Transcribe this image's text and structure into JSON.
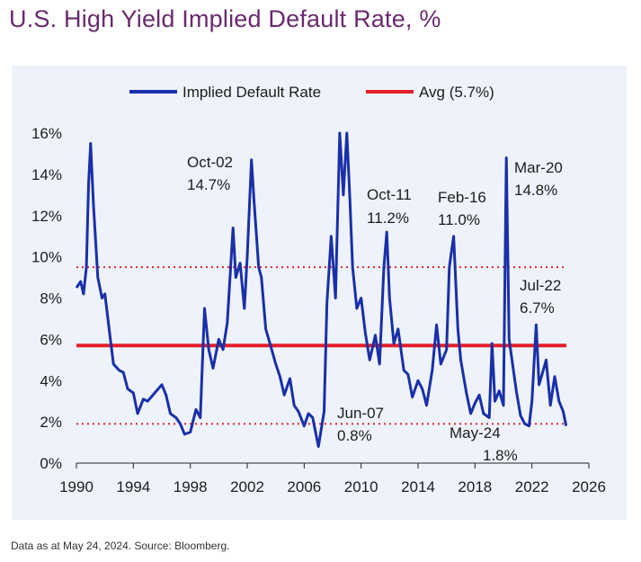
{
  "title": "U.S. High Yield Implied Default Rate, %",
  "footnote": "Data as at May 24, 2024. Source: Bloomberg.",
  "colors": {
    "title": "#6a2a6e",
    "series": "#1a2fa8",
    "avg": "#e2202a",
    "band": "#e2202a",
    "panel": "#eef3fb"
  },
  "chart_data": {
    "type": "line",
    "title": "U.S. High Yield Implied Default Rate, %",
    "xlabel": "",
    "ylabel": "",
    "xlim": [
      1990,
      2026
    ],
    "ylim": [
      0,
      16
    ],
    "x_ticks": [
      1990,
      1994,
      1998,
      2002,
      2006,
      2010,
      2014,
      2018,
      2022,
      2026
    ],
    "y_ticks": [
      0,
      2,
      4,
      6,
      8,
      10,
      12,
      14,
      16
    ],
    "y_tick_suffix": "%",
    "grid": false,
    "legend": {
      "placement": "top",
      "entries": [
        "Implied Default Rate",
        "Avg (5.7%)"
      ]
    },
    "series": [
      {
        "name": "Implied Default Rate",
        "x": [
          1990.0,
          1990.3,
          1990.5,
          1990.7,
          1990.85,
          1991.0,
          1991.2,
          1991.5,
          1991.8,
          1992.0,
          1992.3,
          1992.6,
          1993.0,
          1993.3,
          1993.6,
          1994.0,
          1994.3,
          1994.7,
          1995.0,
          1995.5,
          1996.0,
          1996.3,
          1996.6,
          1997.0,
          1997.3,
          1997.6,
          1998.0,
          1998.4,
          1998.7,
          1999.0,
          1999.3,
          1999.6,
          2000.0,
          2000.3,
          2000.6,
          2001.0,
          2001.2,
          2001.5,
          2001.8,
          2002.0,
          2002.3,
          2002.5,
          2002.8,
          2003.0,
          2003.3,
          2003.6,
          2004.0,
          2004.3,
          2004.6,
          2005.0,
          2005.3,
          2005.6,
          2006.0,
          2006.3,
          2006.6,
          2007.0,
          2007.4,
          2007.6,
          2007.9,
          2008.2,
          2008.5,
          2008.75,
          2009.0,
          2009.2,
          2009.4,
          2009.7,
          2010.0,
          2010.3,
          2010.6,
          2011.0,
          2011.3,
          2011.6,
          2011.8,
          2012.0,
          2012.3,
          2012.6,
          2013.0,
          2013.3,
          2013.6,
          2014.0,
          2014.3,
          2014.6,
          2015.0,
          2015.3,
          2015.6,
          2016.0,
          2016.2,
          2016.5,
          2016.8,
          2017.0,
          2017.4,
          2017.7,
          2018.0,
          2018.3,
          2018.6,
          2019.0,
          2019.2,
          2019.4,
          2019.7,
          2020.0,
          2020.2,
          2020.4,
          2020.6,
          2020.9,
          2021.2,
          2021.5,
          2021.8,
          2022.0,
          2022.3,
          2022.5,
          2022.8,
          2023.0,
          2023.3,
          2023.6,
          2023.9,
          2024.2,
          2024.4
        ],
        "y": [
          8.5,
          8.8,
          8.2,
          9.5,
          13.5,
          15.5,
          12.5,
          9.0,
          8.0,
          8.2,
          6.5,
          4.8,
          4.5,
          4.4,
          3.6,
          3.4,
          2.4,
          3.1,
          3.0,
          3.4,
          3.8,
          3.3,
          2.4,
          2.2,
          1.9,
          1.4,
          1.5,
          2.6,
          2.2,
          7.5,
          5.5,
          4.6,
          6.0,
          5.5,
          6.8,
          11.4,
          9.0,
          9.7,
          7.5,
          10.0,
          14.7,
          12.5,
          9.5,
          9.0,
          6.5,
          5.8,
          4.8,
          4.2,
          3.3,
          4.1,
          2.8,
          2.5,
          1.8,
          2.4,
          2.2,
          0.8,
          2.5,
          7.8,
          11.0,
          8.0,
          16.0,
          13.0,
          16.0,
          13.0,
          9.5,
          7.5,
          8.0,
          6.3,
          5.0,
          6.2,
          4.8,
          9.5,
          11.2,
          8.0,
          5.8,
          6.5,
          4.5,
          4.3,
          3.2,
          4.0,
          3.6,
          2.8,
          4.5,
          6.7,
          4.8,
          5.5,
          9.5,
          11.0,
          6.5,
          5.0,
          3.4,
          2.4,
          2.9,
          3.3,
          2.4,
          2.2,
          5.8,
          3.0,
          3.5,
          2.8,
          14.8,
          6.0,
          5.0,
          3.5,
          2.3,
          1.9,
          1.8,
          3.0,
          6.7,
          3.8,
          4.5,
          5.0,
          2.8,
          4.2,
          3.0,
          2.5,
          1.8
        ]
      }
    ],
    "reference_lines": [
      {
        "name": "Avg (5.7%)",
        "value": 5.7,
        "style": "solid"
      },
      {
        "value": 9.5,
        "style": "dotted"
      },
      {
        "value": 1.9,
        "style": "dotted"
      }
    ],
    "annotations": [
      {
        "text": "Oct-02",
        "sub": "14.7%"
      },
      {
        "text": "Oct-11",
        "sub": "11.2%"
      },
      {
        "text": "Feb-16",
        "sub": "11.0%"
      },
      {
        "text": "Mar-20",
        "sub": "14.8%"
      },
      {
        "text": "Jul-22",
        "sub": "6.7%"
      },
      {
        "text": "Jun-07",
        "sub": "0.8%"
      },
      {
        "text": "May-24",
        "sub": "1.8%"
      }
    ]
  }
}
